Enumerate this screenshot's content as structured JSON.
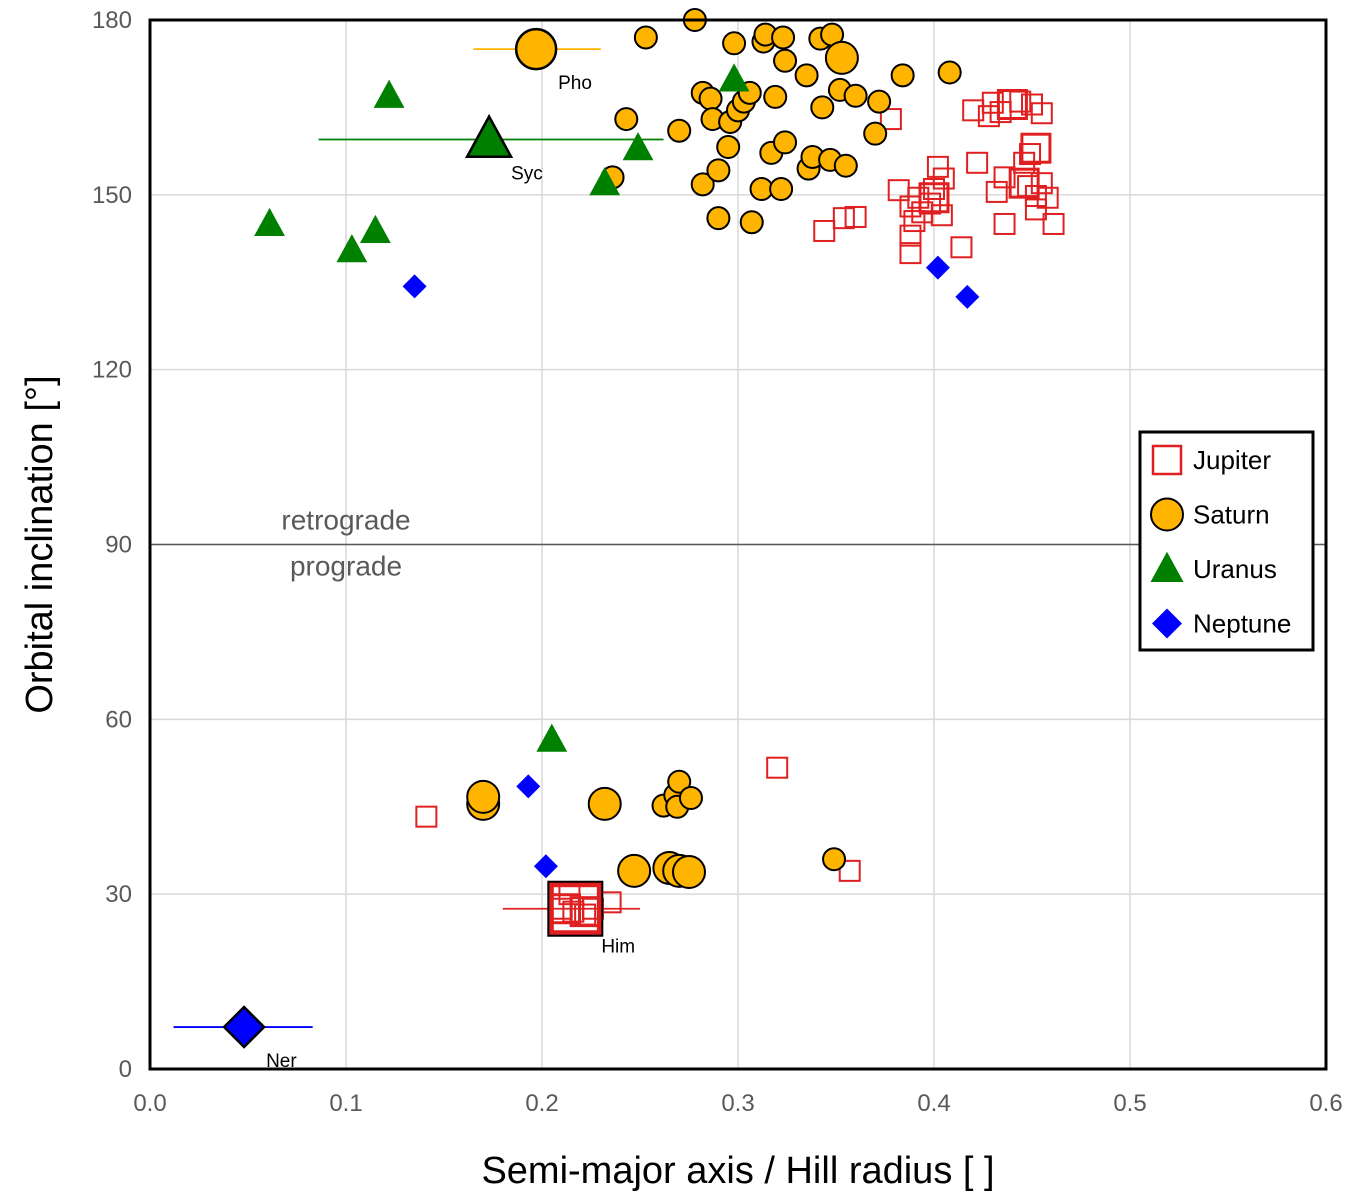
{
  "chart_data": {
    "type": "scatter",
    "xlabel": "Semi-major axis / Hill radius [ ]",
    "ylabel": "Orbital inclination [°]",
    "xlim": [
      0,
      0.6
    ],
    "ylim": [
      0,
      180
    ],
    "xticks": [
      "0.0",
      "0.1",
      "0.2",
      "0.3",
      "0.4",
      "0.5",
      "0.6"
    ],
    "yticks": [
      "0",
      "30",
      "60",
      "90",
      "120",
      "150",
      "180"
    ],
    "grid": true,
    "legend_position": "right",
    "divider": {
      "y": 90,
      "label_above": "retrograde",
      "label_below": "prograde",
      "label_x": 0.1
    },
    "series": [
      {
        "name": "Jupiter",
        "marker": "square-open",
        "color": "#e02020",
        "points": [
          [
            0.141,
            43.3
          ],
          [
            0.32,
            51.7
          ],
          [
            0.357,
            34.0
          ],
          [
            0.235,
            28.6
          ],
          [
            0.214,
            30.0
          ],
          [
            0.21,
            27.5
          ],
          [
            0.216,
            27.0
          ],
          [
            0.222,
            26.5
          ],
          [
            0.226,
            27.5
          ],
          [
            0.378,
            163.0
          ],
          [
            0.382,
            150.8
          ],
          [
            0.388,
            148.0
          ],
          [
            0.39,
            145.5
          ],
          [
            0.392,
            149.5
          ],
          [
            0.388,
            143.0
          ],
          [
            0.388,
            140.0
          ],
          [
            0.394,
            147.0
          ],
          [
            0.402,
            154.8
          ],
          [
            0.405,
            152.8
          ],
          [
            0.4,
            151.0
          ],
          [
            0.398,
            148.5
          ],
          [
            0.404,
            146.5
          ],
          [
            0.414,
            141.0
          ],
          [
            0.422,
            155.5
          ],
          [
            0.344,
            143.8
          ],
          [
            0.354,
            146.0
          ],
          [
            0.36,
            146.2
          ],
          [
            0.42,
            164.5
          ],
          [
            0.428,
            163.5
          ],
          [
            0.43,
            165.8
          ],
          [
            0.434,
            164.2
          ],
          [
            0.444,
            166.0
          ],
          [
            0.45,
            165.5
          ],
          [
            0.455,
            164.0
          ],
          [
            0.432,
            150.5
          ],
          [
            0.436,
            153.0
          ],
          [
            0.446,
            155.5
          ],
          [
            0.448,
            151.5
          ],
          [
            0.452,
            149.8
          ],
          [
            0.458,
            149.5
          ],
          [
            0.436,
            145.0
          ],
          [
            0.452,
            147.5
          ],
          [
            0.461,
            145.0
          ],
          [
            0.455,
            152.0
          ],
          [
            0.449,
            157.0
          ]
        ],
        "large_points": [
          [
            0.212,
            27.5
          ],
          [
            0.222,
            27.0
          ],
          [
            0.4,
            149.5
          ],
          [
            0.44,
            165.5
          ],
          [
            0.446,
            152.0
          ],
          [
            0.452,
            158.0
          ]
        ],
        "error_bars": [
          {
            "x": 0.217,
            "y": 27.5,
            "xmin": 0.18,
            "xmax": 0.25,
            "label": "Him"
          }
        ]
      },
      {
        "name": "Saturn",
        "marker": "circle",
        "color": "#ffb400",
        "points": [
          [
            0.236,
            153.0
          ],
          [
            0.243,
            163.0
          ],
          [
            0.253,
            177.0
          ],
          [
            0.27,
            161.0
          ],
          [
            0.278,
            180.0
          ],
          [
            0.282,
            167.5
          ],
          [
            0.282,
            151.8
          ],
          [
            0.286,
            166.5
          ],
          [
            0.287,
            163.0
          ],
          [
            0.29,
            154.2
          ],
          [
            0.29,
            146.0
          ],
          [
            0.295,
            158.2
          ],
          [
            0.296,
            162.5
          ],
          [
            0.298,
            176.0
          ],
          [
            0.3,
            164.5
          ],
          [
            0.303,
            166.0
          ],
          [
            0.306,
            167.5
          ],
          [
            0.307,
            145.3
          ],
          [
            0.312,
            151.0
          ],
          [
            0.313,
            176.3
          ],
          [
            0.314,
            177.5
          ],
          [
            0.317,
            157.2
          ],
          [
            0.319,
            166.8
          ],
          [
            0.322,
            151.0
          ],
          [
            0.323,
            177.0
          ],
          [
            0.324,
            159.0
          ],
          [
            0.324,
            173.0
          ],
          [
            0.335,
            170.5
          ],
          [
            0.336,
            154.5
          ],
          [
            0.338,
            156.5
          ],
          [
            0.342,
            176.8
          ],
          [
            0.343,
            165.0
          ],
          [
            0.347,
            156.0
          ],
          [
            0.348,
            177.5
          ],
          [
            0.352,
            168.0
          ],
          [
            0.355,
            155.0
          ],
          [
            0.36,
            167.0
          ],
          [
            0.37,
            160.5
          ],
          [
            0.372,
            166.0
          ],
          [
            0.384,
            170.5
          ],
          [
            0.408,
            171.0
          ],
          [
            0.262,
            45.2
          ],
          [
            0.268,
            47.0
          ],
          [
            0.27,
            49.3
          ],
          [
            0.269,
            45.0
          ],
          [
            0.276,
            46.5
          ],
          [
            0.265,
            35.0
          ],
          [
            0.349,
            36.0
          ]
        ],
        "large_points": [
          [
            0.17,
            45.5
          ],
          [
            0.17,
            46.7
          ],
          [
            0.232,
            45.5
          ],
          [
            0.247,
            34.0
          ],
          [
            0.265,
            34.5
          ],
          [
            0.27,
            34.0
          ],
          [
            0.275,
            33.8
          ],
          [
            0.353,
            173.5
          ]
        ],
        "error_bars": [
          {
            "x": 0.197,
            "y": 175.0,
            "xmin": 0.165,
            "xmax": 0.23,
            "label": "Pho"
          }
        ]
      },
      {
        "name": "Uranus",
        "marker": "triangle",
        "color": "#008000",
        "points": [
          [
            0.061,
            145.0
          ],
          [
            0.103,
            140.5
          ],
          [
            0.115,
            143.8
          ],
          [
            0.122,
            167.0
          ],
          [
            0.232,
            152.0
          ],
          [
            0.249,
            158.0
          ],
          [
            0.298,
            169.8
          ],
          [
            0.205,
            56.5
          ]
        ],
        "large_points": [],
        "error_bars": [
          {
            "x": 0.173,
            "y": 159.5,
            "xmin": 0.086,
            "xmax": 0.262,
            "label": "Syc"
          }
        ]
      },
      {
        "name": "Neptune",
        "marker": "diamond",
        "color": "#0000ff",
        "points": [
          [
            0.135,
            134.3
          ],
          [
            0.193,
            48.5
          ],
          [
            0.202,
            34.8
          ],
          [
            0.402,
            137.5
          ],
          [
            0.417,
            132.5
          ]
        ],
        "large_points": [],
        "error_bars": [
          {
            "x": 0.048,
            "y": 7.2,
            "xmin": 0.012,
            "xmax": 0.083,
            "label": "Ner"
          }
        ]
      }
    ]
  }
}
